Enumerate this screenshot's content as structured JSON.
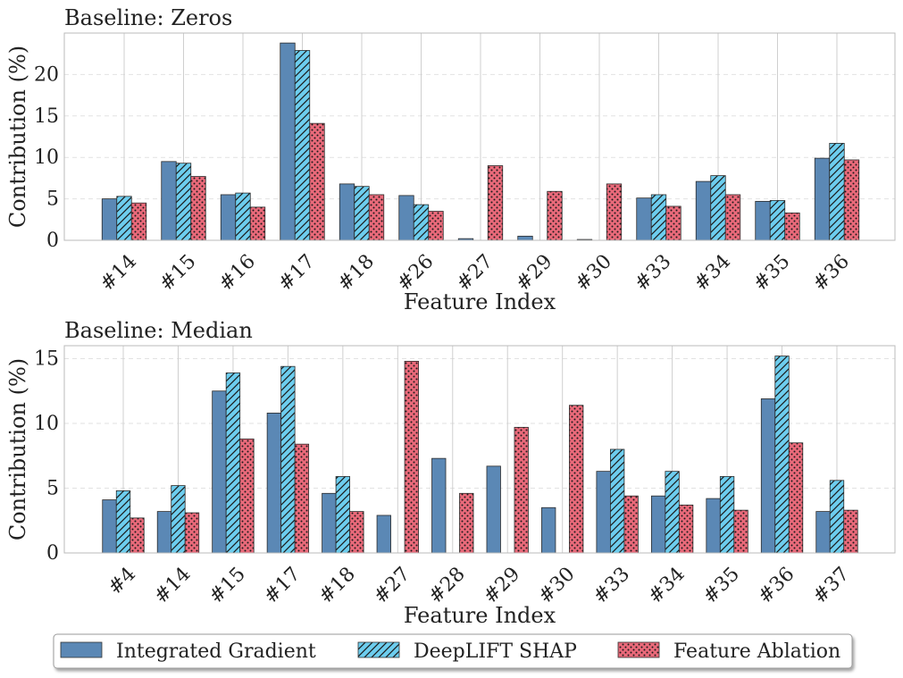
{
  "colors": {
    "integrated_gradient": "#5b88b5",
    "deeplift_shap": "#6dcdee",
    "feature_ablation": "#ea6a7a",
    "grid": "#cccccc",
    "axes": "#bbbbbb"
  },
  "legend": {
    "placement": "bottom-center",
    "items": [
      "Integrated Gradient",
      "DeepLIFT SHAP",
      "Feature Ablation"
    ]
  },
  "chart_data": [
    {
      "type": "bar",
      "title": "Baseline: Zeros",
      "xlabel": "Feature Index",
      "ylabel": "Contribution (%)",
      "ylim": [
        0,
        25
      ],
      "yticks": [
        0,
        5,
        10,
        15,
        20
      ],
      "grid": true,
      "categories": [
        "#14",
        "#15",
        "#16",
        "#17",
        "#18",
        "#26",
        "#27",
        "#29",
        "#30",
        "#33",
        "#34",
        "#35",
        "#36"
      ],
      "series": [
        {
          "name": "Integrated Gradient",
          "values": [
            5.0,
            9.5,
            5.5,
            23.8,
            6.8,
            5.4,
            0.2,
            0.5,
            0.1,
            5.1,
            7.1,
            4.7,
            9.9
          ]
        },
        {
          "name": "DeepLIFT SHAP",
          "values": [
            5.3,
            9.3,
            5.7,
            22.9,
            6.5,
            4.3,
            0,
            0,
            0,
            5.5,
            7.8,
            4.8,
            11.7
          ]
        },
        {
          "name": "Feature Ablation",
          "values": [
            4.5,
            7.7,
            4.0,
            14.1,
            5.5,
            3.5,
            9.0,
            5.9,
            6.8,
            4.1,
            5.5,
            3.3,
            9.7
          ]
        }
      ]
    },
    {
      "type": "bar",
      "title": "Baseline: Median",
      "xlabel": "Feature Index",
      "ylabel": "Contribution (%)",
      "ylim": [
        0,
        16
      ],
      "yticks": [
        0,
        5,
        10,
        15
      ],
      "grid": true,
      "categories": [
        "#4",
        "#14",
        "#15",
        "#17",
        "#18",
        "#27",
        "#28",
        "#29",
        "#30",
        "#33",
        "#34",
        "#35",
        "#36",
        "#37"
      ],
      "series": [
        {
          "name": "Integrated Gradient",
          "values": [
            4.1,
            3.2,
            12.5,
            10.8,
            4.6,
            2.9,
            7.3,
            6.7,
            3.5,
            6.3,
            4.4,
            4.2,
            11.9,
            3.2
          ]
        },
        {
          "name": "DeepLIFT SHAP",
          "values": [
            4.8,
            5.2,
            13.9,
            14.4,
            5.9,
            0,
            0,
            0,
            0,
            8.0,
            6.3,
            5.9,
            15.2,
            5.6
          ]
        },
        {
          "name": "Feature Ablation",
          "values": [
            2.7,
            3.1,
            8.8,
            8.4,
            3.2,
            14.8,
            4.6,
            9.7,
            11.4,
            4.4,
            3.7,
            3.3,
            8.5,
            3.3
          ]
        }
      ]
    }
  ]
}
